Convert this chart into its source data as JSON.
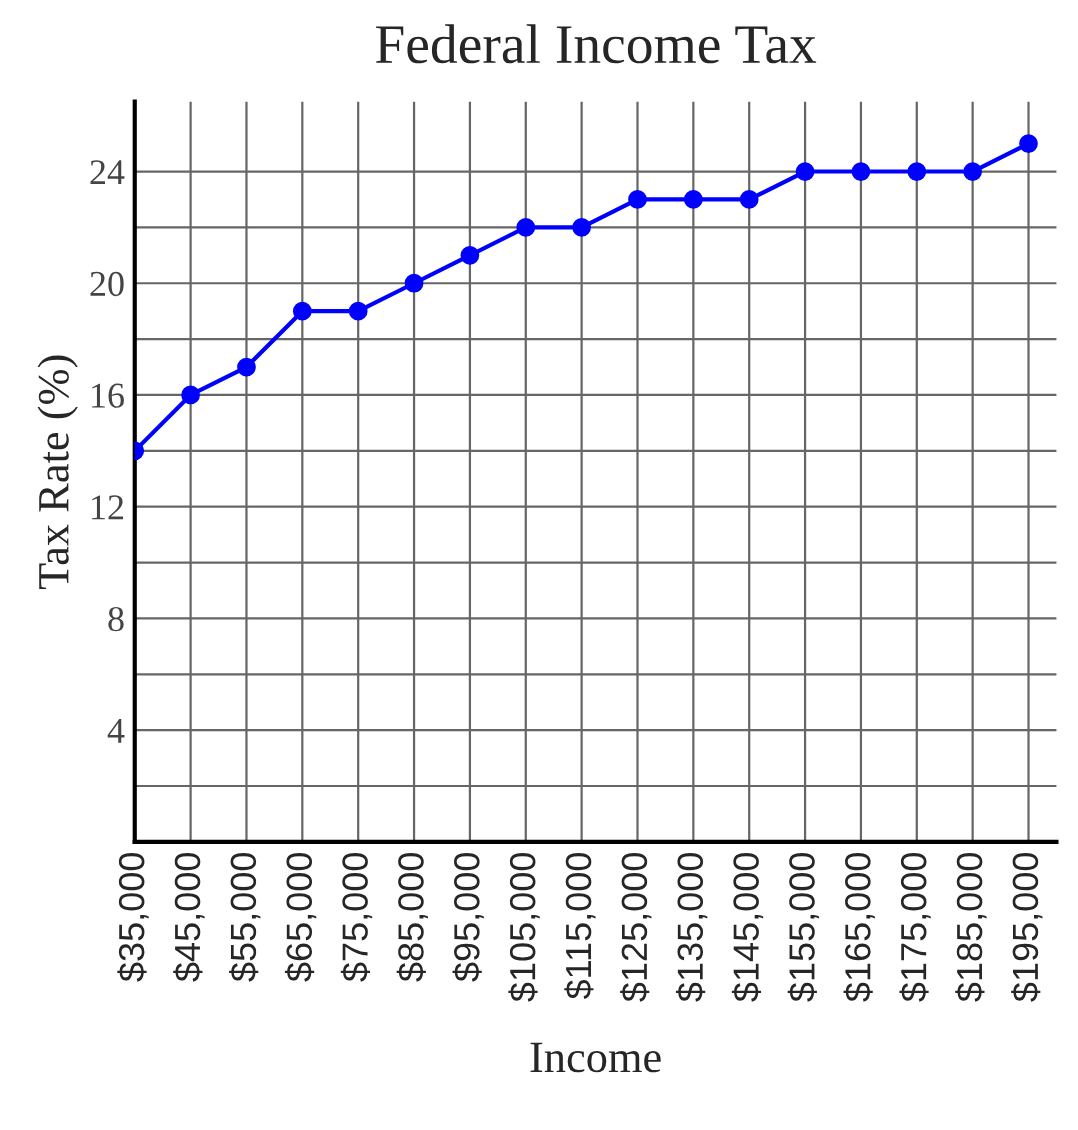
{
  "chart_data": {
    "type": "line",
    "title": "Federal Income Tax",
    "xlabel": "Income",
    "ylabel": "Tax Rate (%)",
    "x": [
      35000,
      45000,
      55000,
      65000,
      75000,
      85000,
      95000,
      105000,
      115000,
      125000,
      135000,
      145000,
      155000,
      165000,
      175000,
      185000,
      195000
    ],
    "series": [
      {
        "color": "#0000ff",
        "values": [
          14,
          16,
          17,
          19,
          19,
          20,
          21,
          22,
          22,
          23,
          23,
          23,
          24,
          24,
          24,
          24,
          25
        ]
      }
    ],
    "xlim": [
      35000,
      200000
    ],
    "xticks": [
      {
        "value": 35000,
        "label": "$35,000"
      },
      {
        "value": 45000,
        "label": "$45,000"
      },
      {
        "value": 55000,
        "label": "$55,000"
      },
      {
        "value": 65000,
        "label": "$65,000"
      },
      {
        "value": 75000,
        "label": "$75,000"
      },
      {
        "value": 85000,
        "label": "$85,000"
      },
      {
        "value": 95000,
        "label": "$95,000"
      },
      {
        "value": 105000,
        "label": "$105,000"
      },
      {
        "value": 115000,
        "label": "$115,000"
      },
      {
        "value": 125000,
        "label": "$125,000"
      },
      {
        "value": 135000,
        "label": "$135,000"
      },
      {
        "value": 145000,
        "label": "$145,000"
      },
      {
        "value": 155000,
        "label": "$155,000"
      },
      {
        "value": 165000,
        "label": "$165,000"
      },
      {
        "value": 175000,
        "label": "$175,000"
      },
      {
        "value": 185000,
        "label": "$185,000"
      },
      {
        "value": 195000,
        "label": "$195,000"
      }
    ],
    "ylim": [
      0,
      26.5
    ],
    "yticks": [
      {
        "value": 2,
        "label": null
      },
      4,
      {
        "value": 6,
        "label": null
      },
      8,
      {
        "value": 10,
        "label": null
      },
      12,
      {
        "value": 14,
        "label": null
      },
      16,
      {
        "value": 18,
        "label": null
      },
      20,
      {
        "value": 22,
        "label": null
      },
      24
    ],
    "grid": true,
    "marker": "circle",
    "line_style": "solid"
  }
}
